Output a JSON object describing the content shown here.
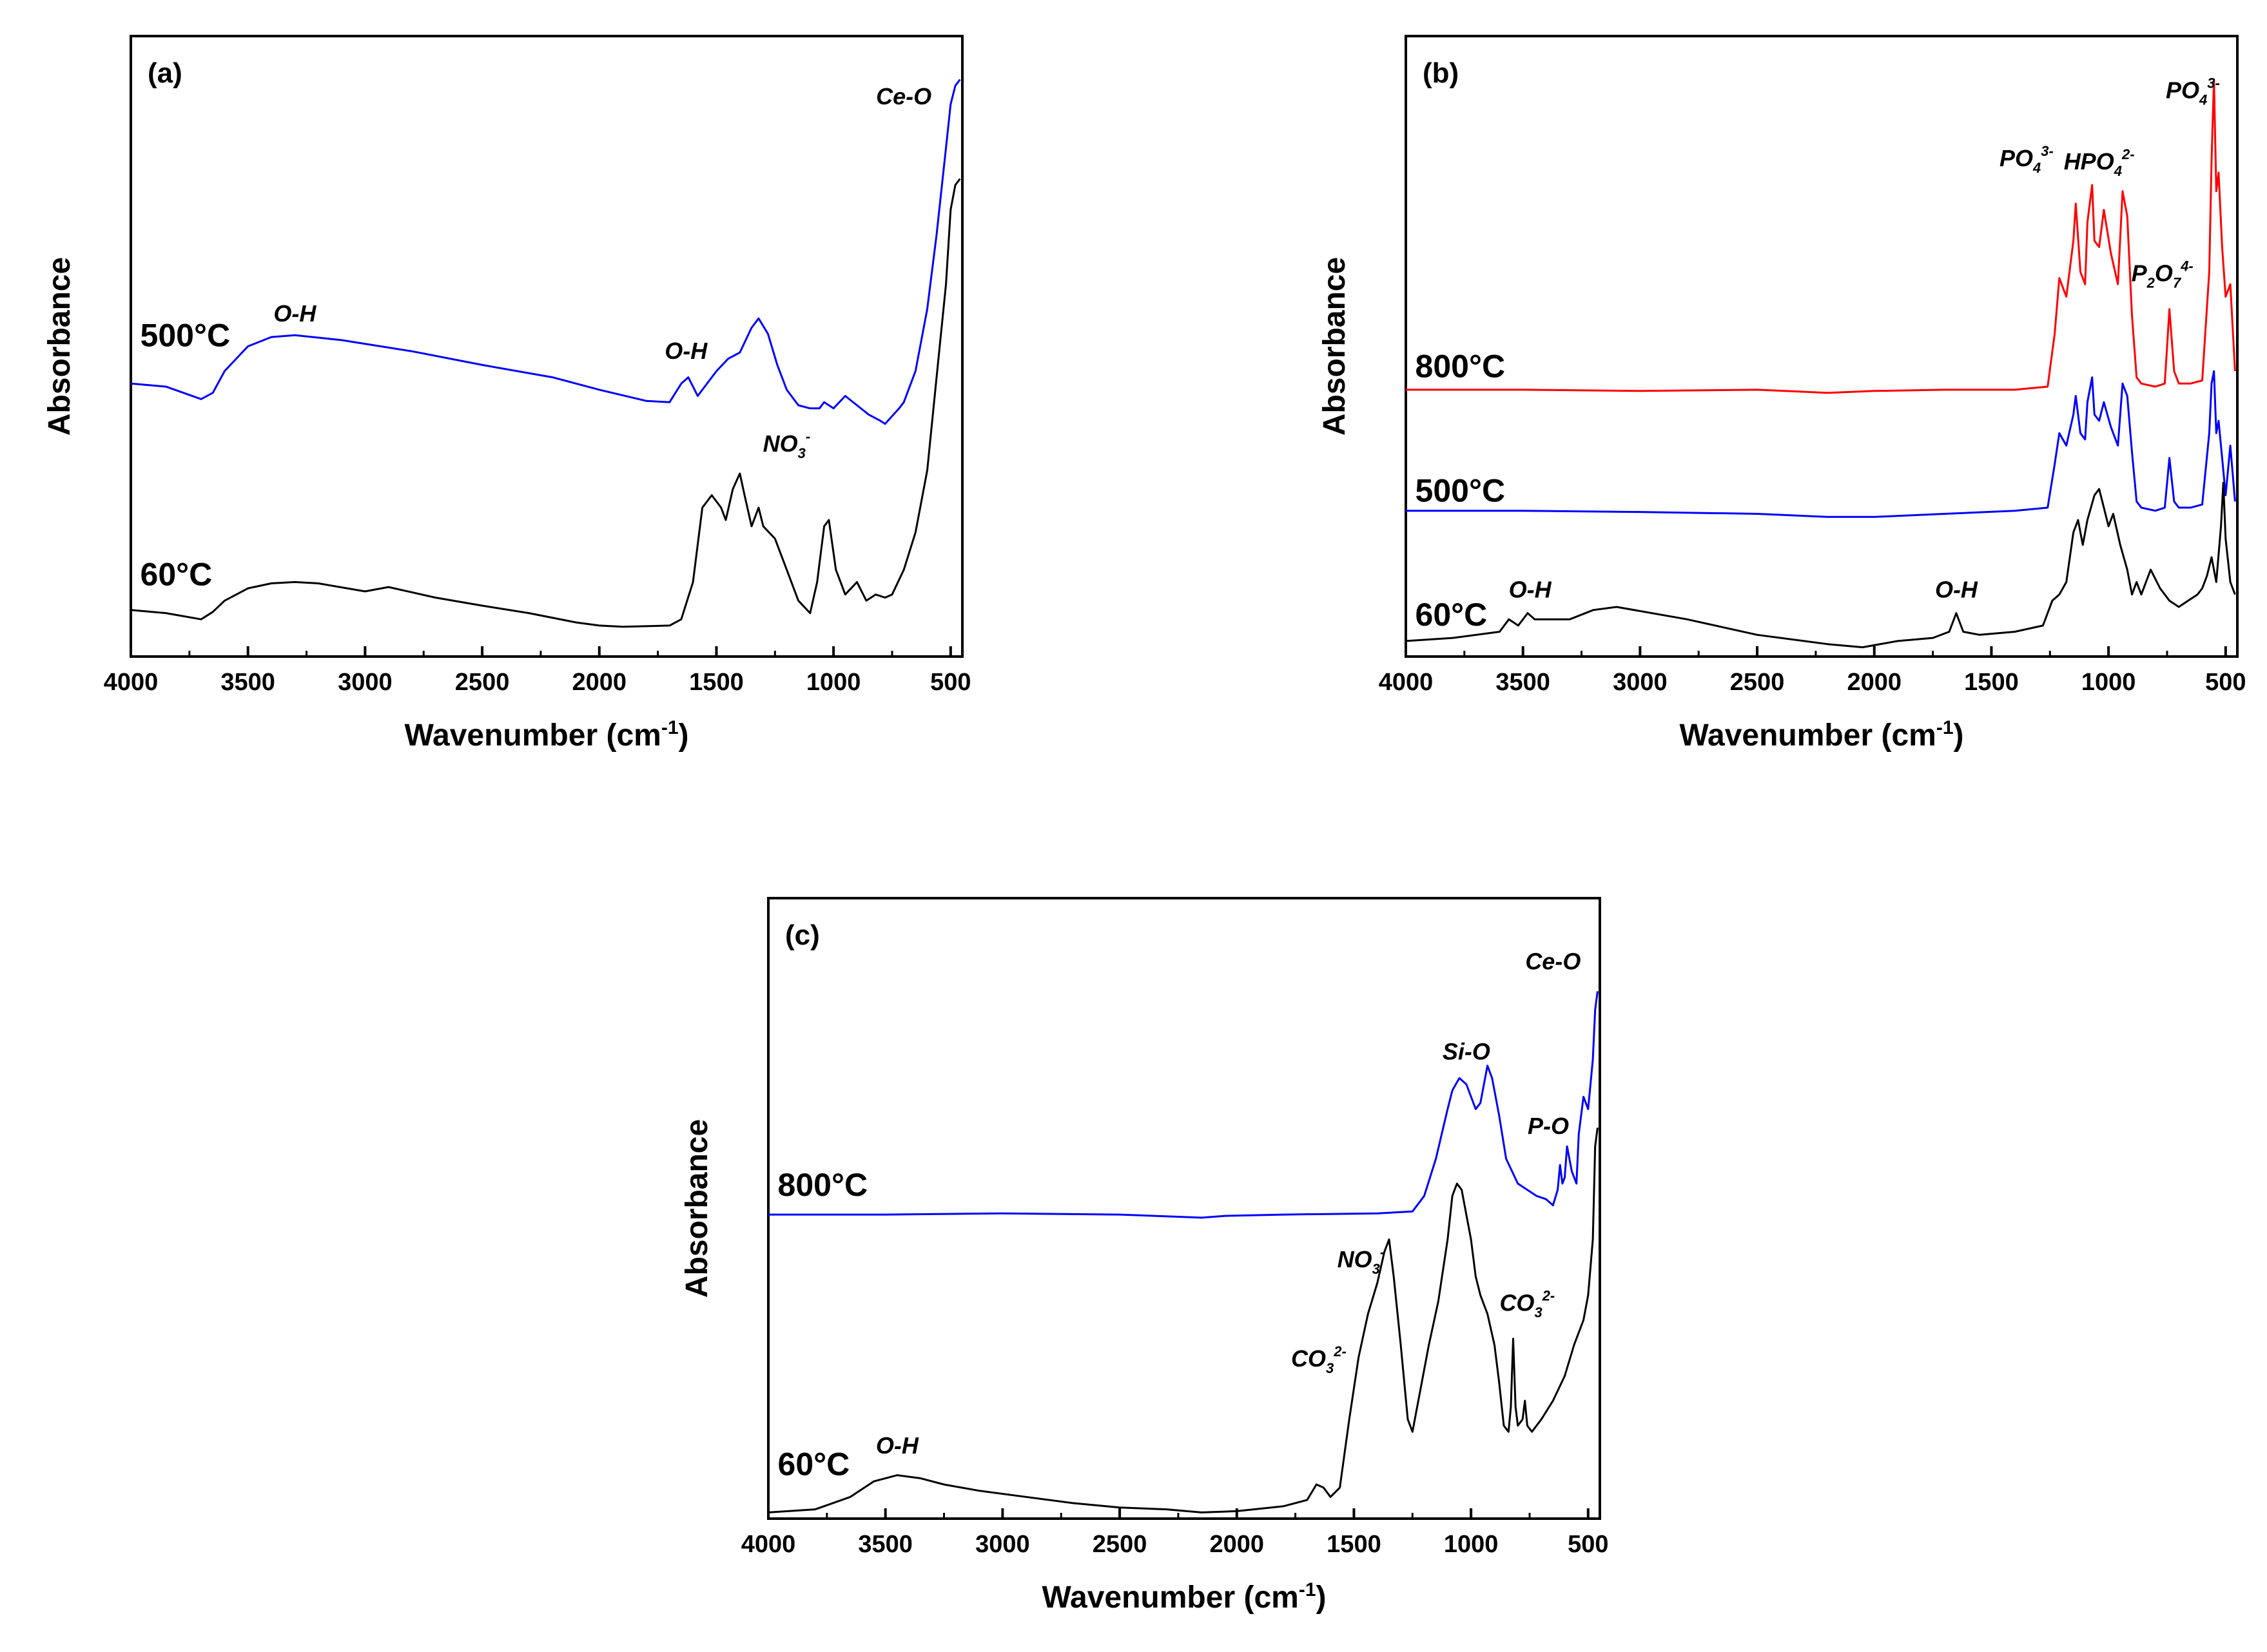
{
  "chart_data": [
    {
      "type": "line",
      "panel_label": "(a)",
      "xlabel": "Wavenumber (cm",
      "xlabel_sup": "-1",
      "xlabel_end": ")",
      "ylabel": "Absorbance",
      "xlim": [
        4000,
        450
      ],
      "xticks": [
        4000,
        3500,
        3000,
        2500,
        2000,
        1500,
        1000,
        500
      ],
      "ylim": [
        0,
        10
      ],
      "series": [
        {
          "name": "500°C",
          "color": "#0000ff",
          "x": [
            4000,
            3850,
            3700,
            3650,
            3600,
            3500,
            3400,
            3300,
            3100,
            2800,
            2500,
            2200,
            2000,
            1800,
            1700,
            1650,
            1620,
            1580,
            1500,
            1450,
            1400,
            1350,
            1320,
            1280,
            1240,
            1200,
            1150,
            1100,
            1060,
            1040,
            1000,
            950,
            900,
            850,
            800,
            780,
            720,
            700,
            650,
            600,
            560,
            520,
            500,
            480,
            460
          ],
          "y": [
            4.4,
            4.35,
            4.15,
            4.25,
            4.6,
            5.0,
            5.15,
            5.18,
            5.1,
            4.92,
            4.7,
            4.5,
            4.3,
            4.12,
            4.1,
            4.4,
            4.5,
            4.2,
            4.6,
            4.8,
            4.9,
            5.3,
            5.45,
            5.2,
            4.7,
            4.3,
            4.05,
            4.0,
            4.0,
            4.1,
            4.0,
            4.2,
            4.05,
            3.9,
            3.8,
            3.75,
            4.0,
            4.1,
            4.6,
            5.6,
            6.8,
            8.2,
            8.9,
            9.2,
            9.3
          ]
        },
        {
          "name": "60°C",
          "color": "#000000",
          "x": [
            4000,
            3850,
            3700,
            3650,
            3600,
            3500,
            3400,
            3300,
            3200,
            3000,
            2900,
            2700,
            2500,
            2300,
            2100,
            2000,
            1900,
            1700,
            1650,
            1600,
            1560,
            1520,
            1480,
            1460,
            1430,
            1400,
            1380,
            1350,
            1320,
            1300,
            1250,
            1200,
            1150,
            1100,
            1070,
            1040,
            1020,
            990,
            950,
            900,
            860,
            820,
            780,
            750,
            700,
            650,
            600,
            560,
            520,
            500,
            480,
            460
          ],
          "y": [
            0.75,
            0.7,
            0.6,
            0.72,
            0.9,
            1.1,
            1.18,
            1.2,
            1.18,
            1.05,
            1.12,
            0.95,
            0.82,
            0.7,
            0.55,
            0.5,
            0.48,
            0.5,
            0.6,
            1.2,
            2.4,
            2.6,
            2.4,
            2.2,
            2.7,
            2.95,
            2.6,
            2.1,
            2.4,
            2.1,
            1.9,
            1.4,
            0.9,
            0.7,
            1.2,
            2.1,
            2.2,
            1.4,
            1.0,
            1.2,
            0.9,
            1.0,
            0.95,
            1.0,
            1.4,
            2.0,
            3.0,
            4.5,
            6.0,
            7.2,
            7.6,
            7.7
          ]
        }
      ],
      "annotations": [
        {
          "text": "O-H",
          "x": 3300,
          "y": 5.4
        },
        {
          "text": "O-H",
          "x": 1630,
          "y": 4.8
        },
        {
          "text": "Ce-O",
          "x": 700,
          "y": 8.9
        },
        {
          "text": "NO",
          "sub": "3",
          "sup": "-",
          "x": 1200,
          "y": 3.3
        }
      ],
      "series_labels": [
        {
          "text": "500°C",
          "x": 3960,
          "y": 5.0
        },
        {
          "text": "60°C",
          "x": 3960,
          "y": 1.15
        }
      ]
    },
    {
      "type": "line",
      "panel_label": "(b)",
      "xlabel": "Wavenumber (cm",
      "xlabel_sup": "-1",
      "xlabel_end": ")",
      "ylabel": "Absorbance",
      "xlim": [
        4000,
        450
      ],
      "xticks": [
        4000,
        3500,
        3000,
        2500,
        2000,
        1500,
        1000,
        500
      ],
      "ylim": [
        0,
        10
      ],
      "series": [
        {
          "name": "800°C",
          "color": "#ff0000",
          "x": [
            4000,
            3500,
            3000,
            2500,
            2200,
            2000,
            1700,
            1400,
            1260,
            1230,
            1210,
            1180,
            1150,
            1140,
            1120,
            1100,
            1090,
            1070,
            1060,
            1040,
            1020,
            990,
            960,
            940,
            920,
            900,
            880,
            860,
            800,
            760,
            740,
            720,
            700,
            650,
            600,
            570,
            560,
            550,
            540,
            530,
            515,
            500,
            480,
            460
          ],
          "y": [
            4.3,
            4.3,
            4.28,
            4.3,
            4.25,
            4.28,
            4.3,
            4.3,
            4.35,
            5.2,
            6.1,
            5.8,
            6.7,
            7.3,
            6.2,
            6.0,
            7.0,
            7.6,
            6.7,
            6.6,
            7.2,
            6.5,
            6.0,
            7.5,
            7.1,
            5.5,
            4.5,
            4.4,
            4.35,
            4.4,
            5.6,
            4.6,
            4.4,
            4.4,
            4.45,
            6.2,
            8.0,
            9.3,
            7.5,
            7.8,
            6.6,
            5.8,
            6.0,
            4.6
          ]
        },
        {
          "name": "500°C",
          "color": "#0000ff",
          "x": [
            4000,
            3500,
            3000,
            2500,
            2200,
            2000,
            1700,
            1400,
            1260,
            1230,
            1210,
            1180,
            1150,
            1140,
            1120,
            1100,
            1090,
            1070,
            1060,
            1040,
            1020,
            990,
            960,
            940,
            920,
            900,
            880,
            860,
            800,
            760,
            740,
            720,
            700,
            650,
            600,
            570,
            560,
            550,
            540,
            530,
            515,
            500,
            480,
            460
          ],
          "y": [
            2.35,
            2.35,
            2.33,
            2.3,
            2.25,
            2.25,
            2.3,
            2.35,
            2.4,
            3.1,
            3.6,
            3.4,
            3.9,
            4.2,
            3.6,
            3.5,
            4.1,
            4.5,
            3.9,
            3.8,
            4.1,
            3.7,
            3.4,
            4.4,
            4.2,
            3.3,
            2.5,
            2.4,
            2.35,
            2.4,
            3.2,
            2.5,
            2.4,
            2.4,
            2.45,
            3.6,
            4.4,
            4.6,
            3.6,
            3.8,
            3.2,
            2.6,
            3.4,
            2.5
          ]
        },
        {
          "name": "60°C",
          "color": "#000000",
          "x": [
            4000,
            3800,
            3600,
            3560,
            3520,
            3480,
            3450,
            3300,
            3200,
            3100,
            2800,
            2500,
            2200,
            2050,
            1900,
            1750,
            1680,
            1650,
            1620,
            1550,
            1400,
            1280,
            1240,
            1210,
            1180,
            1150,
            1130,
            1110,
            1090,
            1060,
            1040,
            1020,
            1000,
            980,
            950,
            920,
            900,
            880,
            860,
            820,
            780,
            740,
            700,
            660,
            620,
            600,
            580,
            560,
            540,
            520,
            510,
            500,
            480,
            460
          ],
          "y": [
            0.25,
            0.3,
            0.4,
            0.6,
            0.5,
            0.7,
            0.6,
            0.6,
            0.75,
            0.8,
            0.6,
            0.35,
            0.2,
            0.15,
            0.25,
            0.3,
            0.4,
            0.7,
            0.4,
            0.35,
            0.4,
            0.5,
            0.9,
            1.0,
            1.2,
            2.0,
            2.2,
            1.8,
            2.2,
            2.6,
            2.7,
            2.4,
            2.1,
            2.3,
            1.8,
            1.4,
            1.0,
            1.2,
            1.0,
            1.4,
            1.1,
            0.9,
            0.8,
            0.9,
            1.0,
            1.1,
            1.3,
            1.6,
            1.2,
            2.1,
            2.8,
            1.9,
            1.2,
            1.0
          ]
        }
      ],
      "annotations": [
        {
          "text": "O-H",
          "x": 3470,
          "y": 0.95
        },
        {
          "text": "O-H",
          "x": 1650,
          "y": 0.95
        },
        {
          "text": "PO",
          "sub": "4",
          "sup": "3-",
          "x": 1350,
          "y": 7.9
        },
        {
          "text": "HPO",
          "sub": "4",
          "sup": "2-",
          "x": 1040,
          "y": 7.85
        },
        {
          "text": "PO",
          "sub": "4",
          "sup": "3-",
          "x": 640,
          "y": 9.0
        },
        {
          "text": "P",
          "sub": "2",
          "mid": "O",
          "sub2": "7",
          "sup": "4-",
          "x": 770,
          "y": 6.05
        }
      ],
      "series_labels": [
        {
          "text": "800°C",
          "x": 3960,
          "y": 4.5
        },
        {
          "text": "500°C",
          "x": 3960,
          "y": 2.5
        },
        {
          "text": "60°C",
          "x": 3960,
          "y": 0.5
        }
      ]
    },
    {
      "type": "line",
      "panel_label": "(c)",
      "xlabel": "Wavenumber (cm",
      "xlabel_sup": "-1",
      "xlabel_end": ")",
      "ylabel": "Absorbance",
      "xlim": [
        4000,
        450
      ],
      "xticks": [
        4000,
        3500,
        3000,
        2500,
        2000,
        1500,
        1000,
        500
      ],
      "ylim": [
        0,
        10
      ],
      "series": [
        {
          "name": "800°C",
          "color": "#0000ff",
          "x": [
            4000,
            3500,
            3000,
            2500,
            2150,
            2050,
            1800,
            1400,
            1250,
            1200,
            1150,
            1100,
            1080,
            1050,
            1020,
            980,
            960,
            930,
            910,
            880,
            850,
            800,
            760,
            720,
            680,
            650,
            630,
            620,
            610,
            600,
            590,
            570,
            550,
            540,
            520,
            500,
            480,
            470,
            460
          ],
          "y": [
            4.9,
            4.9,
            4.92,
            4.9,
            4.85,
            4.88,
            4.9,
            4.92,
            4.95,
            5.2,
            5.8,
            6.6,
            6.9,
            7.1,
            7.0,
            6.6,
            6.7,
            7.3,
            7.1,
            6.5,
            5.8,
            5.4,
            5.3,
            5.2,
            5.15,
            5.05,
            5.3,
            5.7,
            5.4,
            5.5,
            6.0,
            5.6,
            5.4,
            6.2,
            6.8,
            6.6,
            7.4,
            8.2,
            8.5
          ]
        },
        {
          "name": "60°C",
          "color": "#000000",
          "x": [
            4000,
            3800,
            3650,
            3550,
            3450,
            3350,
            3250,
            3100,
            2900,
            2700,
            2500,
            2300,
            2150,
            2000,
            1800,
            1700,
            1660,
            1630,
            1600,
            1560,
            1520,
            1480,
            1440,
            1400,
            1370,
            1350,
            1330,
            1300,
            1270,
            1250,
            1220,
            1180,
            1140,
            1100,
            1080,
            1060,
            1040,
            1000,
            980,
            960,
            930,
            900,
            880,
            860,
            840,
            830,
            820,
            810,
            800,
            780,
            770,
            760,
            740,
            700,
            650,
            600,
            560,
            520,
            500,
            480,
            470,
            460
          ],
          "y": [
            0.1,
            0.15,
            0.35,
            0.6,
            0.7,
            0.65,
            0.55,
            0.45,
            0.35,
            0.25,
            0.18,
            0.15,
            0.1,
            0.12,
            0.2,
            0.3,
            0.55,
            0.5,
            0.35,
            0.5,
            1.6,
            2.6,
            3.3,
            3.8,
            4.3,
            4.5,
            3.9,
            2.8,
            1.6,
            1.4,
            2.0,
            2.8,
            3.5,
            4.5,
            5.2,
            5.4,
            5.3,
            4.5,
            3.9,
            3.6,
            3.3,
            2.8,
            2.2,
            1.5,
            1.4,
            1.8,
            2.9,
            1.8,
            1.5,
            1.6,
            1.9,
            1.5,
            1.4,
            1.6,
            1.9,
            2.3,
            2.8,
            3.2,
            3.6,
            4.5,
            6.0,
            6.3
          ]
        }
      ],
      "annotations": [
        {
          "text": "O-H",
          "x": 3450,
          "y": 1.05
        },
        {
          "text": "CO",
          "sub": "3",
          "sup": "2-",
          "x": 1650,
          "y": 2.45
        },
        {
          "text": "NO",
          "sub": "3",
          "sup": "-",
          "x": 1470,
          "y": 4.05
        },
        {
          "text": "CO",
          "sub": "3",
          "sup": "2-",
          "x": 760,
          "y": 3.35
        },
        {
          "text": "Si-O",
          "x": 1020,
          "y": 7.4
        },
        {
          "text": "P-O",
          "x": 670,
          "y": 6.2
        },
        {
          "text": "Ce-O",
          "x": 650,
          "y": 8.85
        }
      ],
      "series_labels": [
        {
          "text": "800°C",
          "x": 3960,
          "y": 5.2
        },
        {
          "text": "60°C",
          "x": 3960,
          "y": 0.7
        }
      ]
    }
  ]
}
